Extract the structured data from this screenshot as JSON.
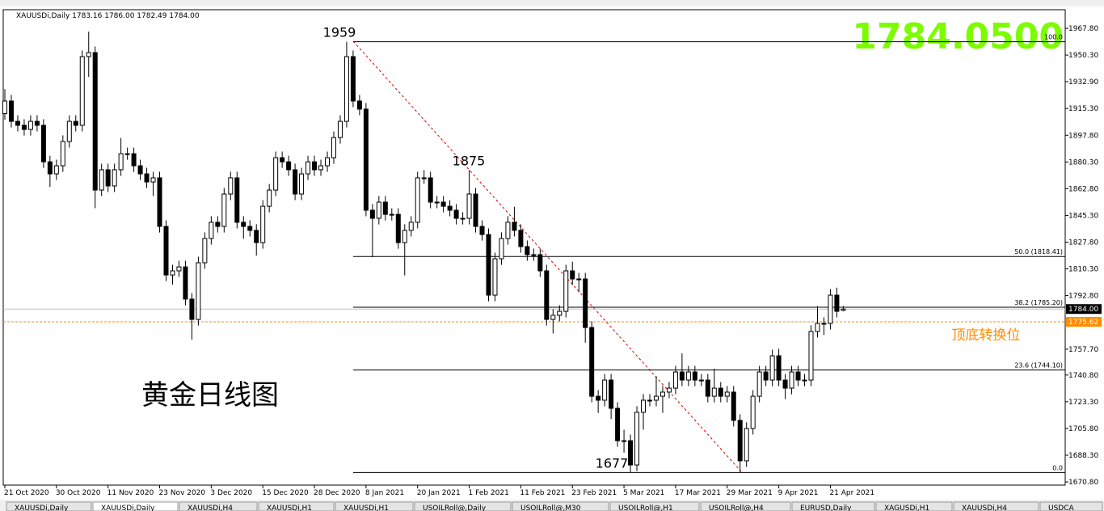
{
  "header": "XAUUSDi,Daily  1783.16 1786.00 1782.49 1784.00",
  "chart_data": {
    "type": "candlestick",
    "title": "黄金日线图",
    "big_price": "1784.0500",
    "categories": [
      "21 Oct 2020",
      null,
      null,
      null,
      null,
      null,
      null,
      null,
      "30 Oct 2020",
      null,
      null,
      null,
      null,
      null,
      null,
      null,
      "11 Nov 2020",
      null,
      null,
      null,
      null,
      null,
      null,
      null,
      "23 Nov 2020",
      null,
      null,
      null,
      null,
      null,
      null,
      null,
      "3 Dec 2020",
      null,
      null,
      null,
      null,
      null,
      null,
      null,
      "15 Dec 2020",
      null,
      null,
      null,
      null,
      null,
      null,
      null,
      "28 Dec 2020",
      null,
      null,
      null,
      null,
      null,
      null,
      null,
      "8 Jan 2021",
      null,
      null,
      null,
      null,
      null,
      null,
      null,
      "20 Jan 2021",
      null,
      null,
      null,
      null,
      null,
      null,
      null,
      "1 Feb 2021",
      null,
      null,
      null,
      null,
      null,
      null,
      null,
      "11 Feb 2021",
      null,
      null,
      null,
      null,
      null,
      null,
      null,
      "23 Feb 2021",
      null,
      null,
      null,
      null,
      null,
      null,
      null,
      "5 Mar 2021",
      null,
      null,
      null,
      null,
      null,
      null,
      null,
      "17 Mar 2021",
      null,
      null,
      null,
      null,
      null,
      null,
      null,
      "29 Mar 2021",
      null,
      null,
      null,
      null,
      null,
      null,
      null,
      "9 Apr 2021",
      null,
      null,
      null,
      null,
      null,
      null,
      null,
      "21 Apr 2021",
      null,
      null
    ],
    "open": [
      1912.0,
      1920.2,
      1906.9,
      1904.3,
      1901.6,
      1906.9,
      1904.3,
      1880.4,
      1872.5,
      1877.8,
      1893.7,
      1906.9,
      1904.3,
      1949.3,
      1951.9,
      1861.9,
      1875.2,
      1864.6,
      1875.2,
      1885.7,
      1885.7,
      1877.8,
      1872.5,
      1867.2,
      1869.9,
      1838.1,
      1806.3,
      1809.0,
      1811.6,
      1790.5,
      1777.2,
      1814.3,
      1830.2,
      1840.8,
      1838.1,
      1859.3,
      1869.9,
      1840.8,
      1838.1,
      1835.5,
      1827.5,
      1851.3,
      1861.9,
      1883.1,
      1880.4,
      1875.2,
      1859.3,
      1872.5,
      1880.4,
      1875.2,
      1877.8,
      1883.1,
      1896.3,
      1906.9,
      1949.3,
      1920.2,
      1914.9,
      1848.7,
      1843.4,
      1854.0,
      1846.0,
      1846.0,
      1827.5,
      1835.5,
      1840.8,
      1869.9,
      1869.9,
      1854.0,
      1854.0,
      1851.3,
      1848.7,
      1843.4,
      1843.4,
      1859.3,
      1838.1,
      1832.8,
      1793.1,
      1816.9,
      1830.2,
      1840.8,
      1835.5,
      1824.9,
      1819.6,
      1819.6,
      1809.0,
      1777.2,
      1779.9,
      1782.5,
      1809.0,
      1803.7,
      1803.7,
      1771.9,
      1726.9,
      1724.3,
      1737.5,
      1719.0,
      1697.8,
      1697.8,
      1681.9,
      1716.4,
      1724.3,
      1724.3,
      1726.9,
      1729.6,
      1732.2,
      1742.8,
      1737.5,
      1742.8,
      1737.5,
      1737.5,
      1726.9,
      1732.2,
      1726.9,
      1729.6,
      1711.1,
      1684.6,
      1705.8,
      1726.9,
      1742.8,
      1737.5,
      1753.4,
      1737.5,
      1732.2,
      1742.8,
      1737.5,
      1737.5,
      1769.3,
      1774.6,
      1774.6,
      1793.1,
      1783.16
    ],
    "high": [
      1928.0,
      1924.2,
      1910.9,
      1908.3,
      1910.9,
      1910.9,
      1908.3,
      1884.4,
      1881.8,
      1897.7,
      1910.9,
      1910.9,
      1953.3,
      1965.6,
      1955.9,
      1879.2,
      1879.2,
      1879.2,
      1896.0,
      1889.7,
      1889.7,
      1881.8,
      1876.5,
      1873.9,
      1873.9,
      1842.1,
      1813.0,
      1815.6,
      1815.6,
      1794.5,
      1818.3,
      1834.2,
      1844.8,
      1844.8,
      1863.3,
      1873.9,
      1873.9,
      1844.8,
      1842.1,
      1839.5,
      1855.3,
      1865.9,
      1887.1,
      1887.1,
      1884.4,
      1879.2,
      1876.5,
      1884.4,
      1884.4,
      1881.8,
      1887.1,
      1900.3,
      1910.9,
      1959.0,
      1953.3,
      1924.2,
      1918.9,
      1852.7,
      1858.0,
      1858.0,
      1850.0,
      1850.0,
      1839.5,
      1844.8,
      1873.9,
      1875.0,
      1873.9,
      1858.0,
      1858.0,
      1855.3,
      1852.7,
      1847.4,
      1875.0,
      1863.3,
      1842.1,
      1836.8,
      1820.9,
      1834.2,
      1844.8,
      1851.0,
      1839.5,
      1828.9,
      1823.6,
      1823.6,
      1813.0,
      1783.9,
      1786.5,
      1813.0,
      1815.0,
      1807.7,
      1807.7,
      1775.9,
      1730.9,
      1741.5,
      1741.5,
      1723.0,
      1705.0,
      1701.8,
      1720.4,
      1728.3,
      1728.3,
      1740.0,
      1733.6,
      1736.2,
      1746.8,
      1755.0,
      1746.8,
      1746.8,
      1741.5,
      1741.5,
      1745.0,
      1736.2,
      1733.6,
      1733.6,
      1715.1,
      1709.8,
      1730.9,
      1746.8,
      1746.8,
      1757.4,
      1758.0,
      1741.5,
      1746.8,
      1746.8,
      1741.5,
      1773.3,
      1786.0,
      1778.6,
      1797.1,
      1798.0,
      1786.0
    ],
    "low": [
      1908.0,
      1902.9,
      1900.3,
      1897.6,
      1897.6,
      1900.3,
      1876.4,
      1864.0,
      1868.5,
      1873.8,
      1889.7,
      1900.3,
      1900.3,
      1936.0,
      1850.0,
      1857.9,
      1860.6,
      1860.6,
      1871.2,
      1881.7,
      1873.8,
      1868.5,
      1863.2,
      1858.0,
      1834.1,
      1802.3,
      1800.0,
      1805.0,
      1786.5,
      1764.0,
      1773.2,
      1810.3,
      1826.2,
      1834.1,
      1834.1,
      1855.3,
      1836.8,
      1830.0,
      1831.5,
      1819.0,
      1823.5,
      1847.3,
      1857.9,
      1876.4,
      1871.2,
      1855.3,
      1855.3,
      1868.5,
      1871.2,
      1871.2,
      1873.8,
      1879.1,
      1892.3,
      1902.9,
      1916.2,
      1910.9,
      1844.7,
      1818.0,
      1839.4,
      1842.0,
      1842.0,
      1823.5,
      1806.0,
      1831.5,
      1836.8,
      1865.9,
      1850.0,
      1850.0,
      1847.3,
      1844.7,
      1839.4,
      1839.4,
      1839.4,
      1834.1,
      1828.8,
      1789.1,
      1789.1,
      1812.9,
      1826.2,
      1831.5,
      1820.9,
      1815.6,
      1815.6,
      1805.0,
      1773.2,
      1768.0,
      1775.9,
      1778.5,
      1799.7,
      1795.0,
      1762.0,
      1722.9,
      1716.0,
      1720.3,
      1712.0,
      1693.8,
      1690.0,
      1677.0,
      1677.9,
      1705.0,
      1720.3,
      1720.3,
      1716.0,
      1725.6,
      1728.2,
      1733.5,
      1733.5,
      1733.5,
      1733.5,
      1722.9,
      1722.9,
      1722.9,
      1722.9,
      1707.1,
      1677.3,
      1680.6,
      1701.8,
      1722.9,
      1733.5,
      1733.5,
      1733.5,
      1725.0,
      1728.2,
      1733.5,
      1733.5,
      1733.5,
      1765.3,
      1767.0,
      1770.6,
      1778.5,
      1782.49
    ],
    "close": [
      1920.2,
      1906.9,
      1904.3,
      1901.6,
      1906.9,
      1904.3,
      1880.4,
      1872.5,
      1877.8,
      1893.7,
      1906.9,
      1904.3,
      1949.3,
      1951.9,
      1861.9,
      1875.2,
      1864.6,
      1875.2,
      1885.7,
      1885.7,
      1877.8,
      1872.5,
      1867.2,
      1869.9,
      1838.1,
      1806.3,
      1809.0,
      1811.6,
      1790.5,
      1777.2,
      1814.3,
      1830.2,
      1840.8,
      1838.1,
      1859.3,
      1869.9,
      1840.8,
      1838.1,
      1835.5,
      1827.5,
      1851.3,
      1861.9,
      1883.1,
      1880.4,
      1875.2,
      1859.3,
      1872.5,
      1880.4,
      1875.2,
      1877.8,
      1883.1,
      1896.3,
      1906.9,
      1949.3,
      1920.2,
      1914.9,
      1848.7,
      1843.4,
      1854.0,
      1846.0,
      1846.0,
      1827.5,
      1835.5,
      1840.8,
      1869.9,
      1869.9,
      1854.0,
      1854.0,
      1851.3,
      1848.7,
      1843.4,
      1843.4,
      1859.3,
      1838.1,
      1832.8,
      1793.1,
      1816.9,
      1830.2,
      1840.8,
      1835.5,
      1824.9,
      1819.6,
      1819.6,
      1809.0,
      1777.2,
      1779.9,
      1782.5,
      1809.0,
      1803.7,
      1803.7,
      1771.9,
      1726.9,
      1724.3,
      1737.5,
      1719.0,
      1697.8,
      1697.8,
      1681.9,
      1716.4,
      1724.3,
      1724.3,
      1726.9,
      1729.6,
      1732.2,
      1742.8,
      1737.5,
      1742.8,
      1737.5,
      1737.5,
      1726.9,
      1732.2,
      1726.9,
      1729.6,
      1711.1,
      1684.6,
      1705.8,
      1726.9,
      1742.8,
      1737.5,
      1753.4,
      1737.5,
      1732.2,
      1742.8,
      1737.5,
      1737.5,
      1769.3,
      1774.6,
      1774.6,
      1793.1,
      1782.5,
      1784.0
    ],
    "ylim": [
      1668.7,
      1980.0
    ],
    "yticks": [
      {
        "value": 1967.8,
        "label": "1967.80"
      },
      {
        "value": 1950.3,
        "label": "1950.30"
      },
      {
        "value": 1932.9,
        "label": "1932.90"
      },
      {
        "value": 1915.3,
        "label": "1915.30"
      },
      {
        "value": 1897.8,
        "label": "1897.80"
      },
      {
        "value": 1880.3,
        "label": "1880.30"
      },
      {
        "value": 1862.8,
        "label": "1862.80"
      },
      {
        "value": 1845.3,
        "label": "1845.30"
      },
      {
        "value": 1827.8,
        "label": "1827.80"
      },
      {
        "value": 1810.3,
        "label": "1810.30"
      },
      {
        "value": 1792.8,
        "label": "1792.80"
      },
      {
        "value": 1757.7,
        "label": "1757.70"
      },
      {
        "value": 1740.8,
        "label": "1740.80"
      },
      {
        "value": 1723.3,
        "label": "1723.30"
      },
      {
        "value": 1705.8,
        "label": "1705.80"
      },
      {
        "value": 1688.3,
        "label": "1688.30"
      },
      {
        "value": 1670.8,
        "label": "1670.80"
      }
    ],
    "price_line": {
      "value": 1784.0,
      "label": "1784.00"
    },
    "level_line": {
      "value": 1775.62,
      "label": "1775.62",
      "text": "顶底转换位",
      "color": "#ff8c00"
    },
    "fib_levels": [
      {
        "value": 1959,
        "label": "100.0"
      },
      {
        "value": 1818.41,
        "label": "50.0 (1818.41)"
      },
      {
        "value": 1785.2,
        "label": "38.2 (1785.20)"
      },
      {
        "value": 1744.1,
        "label": "23.6 (1744.10)"
      },
      {
        "value": 1677,
        "label": "0.0"
      }
    ],
    "swing_labels": [
      1959,
      1875,
      1677
    ]
  },
  "tabs": [
    "XAUUSDi,Daily",
    "XAUUSDi,Daily",
    "XAUUSDi,H4",
    "XAUUSDi,H1",
    "XAUUSDi,H1",
    "USOILRoll@,Daily",
    "USOILRoll@,M30",
    "USOILRoll@,H1",
    "USOILRoll@,H4",
    "EURUSD,Daily",
    "XAGUSDi,H1",
    "XAUUSDi,H4",
    "USDCA"
  ]
}
